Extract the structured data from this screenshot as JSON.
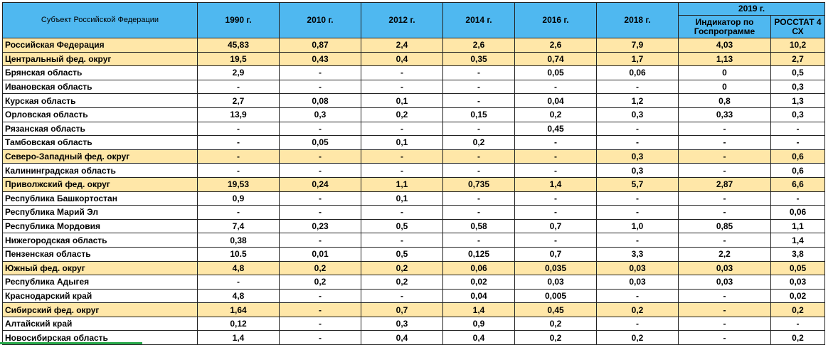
{
  "header": {
    "subject": "Субъект Российской Федерации",
    "years": [
      "1990 г.",
      "2010 г.",
      "2012 г.",
      "2014 г.",
      "2016 г.",
      "2018 г."
    ],
    "group": "2019 г.",
    "sub": [
      "Индикатор по Госпрограмме",
      "РОССТАТ 4 СХ"
    ]
  },
  "rows": [
    {
      "type": "fed",
      "name": "Российская Федерация",
      "v": [
        "45,83",
        "0,87",
        "2,4",
        "2,6",
        "2,6",
        "7,9",
        "4,03",
        "10,2"
      ]
    },
    {
      "type": "fed",
      "name": "Центральный фед. округ",
      "v": [
        "19,5",
        "0,43",
        "0,4",
        "0,35",
        "0,74",
        "1,7",
        "1,13",
        "2,7"
      ]
    },
    {
      "type": "reg",
      "name": "Брянская область",
      "v": [
        "2,9",
        "-",
        "-",
        "-",
        "0,05",
        "0,06",
        "0",
        "0,5"
      ]
    },
    {
      "type": "reg",
      "name": "Ивановская область",
      "v": [
        "-",
        "-",
        "-",
        "-",
        "-",
        "-",
        "0",
        "0,3"
      ]
    },
    {
      "type": "reg",
      "name": "Курская область",
      "v": [
        "2,7",
        "0,08",
        "0,1",
        "-",
        "0,04",
        "1,2",
        "0,8",
        "1,3"
      ]
    },
    {
      "type": "reg",
      "name": "Орловская область",
      "v": [
        "13,9",
        "0,3",
        "0,2",
        "0,15",
        "0,2",
        "0,3",
        "0,33",
        "0,3"
      ]
    },
    {
      "type": "reg",
      "name": "Рязанская область",
      "v": [
        "-",
        "-",
        "-",
        "-",
        "0,45",
        "-",
        "-",
        "-"
      ]
    },
    {
      "type": "reg",
      "name": "Тамбовская область",
      "v": [
        "-",
        "0,05",
        "0,1",
        "0,2",
        "-",
        "-",
        "-",
        "-"
      ]
    },
    {
      "type": "fed",
      "name": "Северо-Западный фед. округ",
      "v": [
        "-",
        "-",
        "-",
        "-",
        "-",
        "0,3",
        "-",
        "0,6"
      ]
    },
    {
      "type": "reg",
      "name": "Калининградская область",
      "v": [
        "-",
        "-",
        "-",
        "-",
        "-",
        "0,3",
        "-",
        "0,6"
      ]
    },
    {
      "type": "fed",
      "name": "Приволжский фед. округ",
      "v": [
        "19,53",
        "0,24",
        "1,1",
        "0,735",
        "1,4",
        "5,7",
        "2,87",
        "6,6"
      ]
    },
    {
      "type": "reg",
      "name": "Республика Башкортостан",
      "v": [
        "0,9",
        "-",
        "0,1",
        "-",
        "-",
        "-",
        "-",
        "-"
      ]
    },
    {
      "type": "reg",
      "name": "Республика Марий Эл",
      "v": [
        "-",
        "-",
        "-",
        "-",
        "-",
        "-",
        "-",
        "0,06"
      ]
    },
    {
      "type": "reg",
      "name": "Республика Мордовия",
      "v": [
        "7,4",
        "0,23",
        "0,5",
        "0,58",
        "0,7",
        "1,0",
        "0,85",
        "1,1"
      ]
    },
    {
      "type": "reg",
      "name": "Нижегородская область",
      "v": [
        "0,38",
        "-",
        "-",
        "-",
        "-",
        "-",
        "-",
        "1,4"
      ]
    },
    {
      "type": "reg",
      "name": "Пензенская область",
      "v": [
        "10.5",
        "0,01",
        "0,5",
        "0,125",
        "0,7",
        "3,3",
        "2,2",
        "3,8"
      ]
    },
    {
      "type": "fed",
      "name": "Южный фед. округ",
      "v": [
        "4,8",
        "0,2",
        "0,2",
        "0,06",
        "0,035",
        "0,03",
        "0,03",
        "0,05"
      ]
    },
    {
      "type": "reg",
      "name": "Республика Адыгея",
      "v": [
        "-",
        "0,2",
        "0,2",
        "0,02",
        "0,03",
        "0,03",
        "0,03",
        "0,03"
      ]
    },
    {
      "type": "reg",
      "name": "Краснодарский край",
      "v": [
        "4,8",
        "-",
        "-",
        "0,04",
        "0,005",
        "-",
        "-",
        "0,02"
      ]
    },
    {
      "type": "fed",
      "name": "Сибирский фед. округ",
      "v": [
        "1,64",
        "-",
        "0,7",
        "1,4",
        "0,45",
        "0,2",
        "-",
        "0,2"
      ]
    },
    {
      "type": "reg",
      "name": "Алтайский край",
      "v": [
        "0,12",
        "-",
        "0,3",
        "0,9",
        "0,2",
        "-",
        "-",
        "-"
      ]
    },
    {
      "type": "reg",
      "name": "Новосибирская область",
      "v": [
        "1,4",
        "-",
        "0,4",
        "0,4",
        "0,2",
        "0,2",
        "-",
        "0,2"
      ]
    }
  ]
}
